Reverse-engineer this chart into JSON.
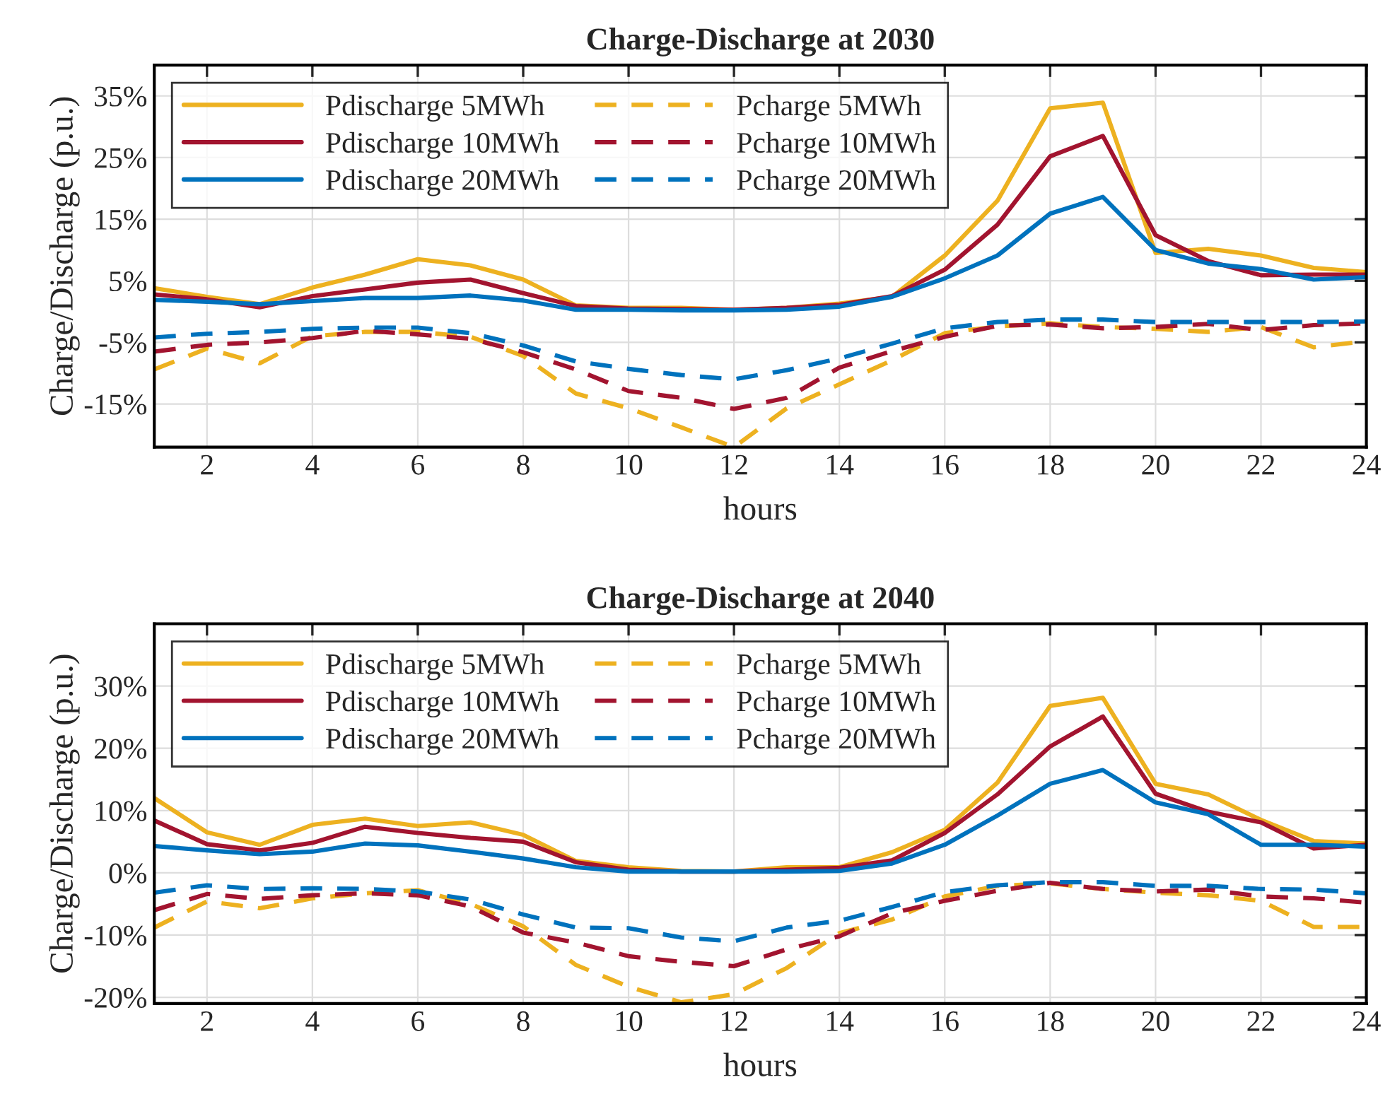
{
  "chart_data": [
    {
      "type": "line",
      "title": "Charge-Discharge at 2030",
      "xlabel": "hours",
      "ylabel": "Charge/Discharge (p.u.)",
      "x": [
        1,
        2,
        3,
        4,
        5,
        6,
        7,
        8,
        9,
        10,
        11,
        12,
        13,
        14,
        15,
        16,
        17,
        18,
        19,
        20,
        21,
        22,
        23,
        24
      ],
      "xlim": [
        1,
        24
      ],
      "xticks": [
        2,
        4,
        6,
        8,
        10,
        12,
        14,
        16,
        18,
        20,
        22,
        24
      ],
      "ylim": [
        -22,
        40
      ],
      "yticks": [
        {
          "value": -15,
          "label": "-15%"
        },
        {
          "value": -5,
          "label": "-5%"
        },
        {
          "value": 5,
          "label": "5%"
        },
        {
          "value": 15,
          "label": "15%"
        },
        {
          "value": 25,
          "label": "25%"
        },
        {
          "value": 35,
          "label": "35%"
        }
      ],
      "grid": true,
      "legend": "top left",
      "series": [
        {
          "name": "Pdischarge 5MWh",
          "color": "#edb120",
          "line_style": "solid",
          "values": [
            3.8,
            2.4,
            1.2,
            3.9,
            6,
            8.5,
            7.5,
            5.2,
            1,
            0.6,
            0.6,
            0.3,
            0.6,
            1.3,
            2.4,
            9.1,
            18,
            33,
            33.9,
            9.5,
            10.2,
            9.1,
            7.1,
            6.4
          ]
        },
        {
          "name": "Pdischarge 10MWh",
          "color": "#a2142f",
          "line_style": "solid",
          "values": [
            2.8,
            2,
            0.7,
            2.5,
            3.6,
            4.7,
            5.2,
            3,
            0.9,
            0.5,
            0.4,
            0.3,
            0.6,
            1.1,
            2.5,
            6.8,
            14.1,
            25.2,
            28.5,
            12.4,
            8.2,
            5.9,
            6,
            6
          ]
        },
        {
          "name": "Pdischarge 20MWh",
          "color": "#0072bd",
          "line_style": "solid",
          "values": [
            1.9,
            1.6,
            1.2,
            1.7,
            2.2,
            2.2,
            2.6,
            1.8,
            0.3,
            0.3,
            0.2,
            0.2,
            0.3,
            0.8,
            2.4,
            5.4,
            9.1,
            15.9,
            18.6,
            10,
            7.8,
            6.9,
            5.2,
            5.6
          ]
        },
        {
          "name": "Pcharge 5MWh",
          "color": "#edb120",
          "line_style": "dashed",
          "values": [
            -9.4,
            -6,
            -8.4,
            -4,
            -3.3,
            -3.3,
            -4.1,
            -7.2,
            -13.3,
            -15.7,
            -18.8,
            -22,
            -15.7,
            -11.8,
            -7.9,
            -3.5,
            -2.4,
            -1.9,
            -2.5,
            -2.8,
            -3.3,
            -2.5,
            -5.8,
            -4.8
          ]
        },
        {
          "name": "Pcharge 10MWh",
          "color": "#a2142f",
          "line_style": "dashed",
          "values": [
            -6.5,
            -5.4,
            -5,
            -4.3,
            -3.1,
            -3.7,
            -4.4,
            -6.6,
            -9.4,
            -12.9,
            -14,
            -15.8,
            -14,
            -9.1,
            -6.4,
            -4.1,
            -2.3,
            -2.1,
            -2.7,
            -2.5,
            -2,
            -3,
            -2.2,
            -1.9
          ]
        },
        {
          "name": "Pcharge 20MWh",
          "color": "#0072bd",
          "line_style": "dashed",
          "values": [
            -4.2,
            -3.6,
            -3.3,
            -2.8,
            -2.6,
            -2.6,
            -3.5,
            -5.5,
            -8.1,
            -9.3,
            -10.3,
            -11,
            -9.5,
            -7.6,
            -5.2,
            -2.7,
            -1.7,
            -1.3,
            -1.3,
            -1.7,
            -1.7,
            -1.7,
            -1.7,
            -1.6
          ]
        }
      ]
    },
    {
      "type": "line",
      "title": "Charge-Discharge at 2040",
      "xlabel": "hours",
      "ylabel": "Charge/Discharge (p.u.)",
      "x": [
        1,
        2,
        3,
        4,
        5,
        6,
        7,
        8,
        9,
        10,
        11,
        12,
        13,
        14,
        15,
        16,
        17,
        18,
        19,
        20,
        21,
        22,
        23,
        24
      ],
      "xlim": [
        1,
        24
      ],
      "xticks": [
        2,
        4,
        6,
        8,
        10,
        12,
        14,
        16,
        18,
        20,
        22,
        24
      ],
      "ylim": [
        -21,
        40
      ],
      "yticks": [
        {
          "value": -20,
          "label": "-20%"
        },
        {
          "value": -10,
          "label": "-10%"
        },
        {
          "value": 0,
          "label": "0%"
        },
        {
          "value": 10,
          "label": "10%"
        },
        {
          "value": 20,
          "label": "20%"
        },
        {
          "value": 30,
          "label": "30%"
        }
      ],
      "grid": true,
      "legend": "top left",
      "series": [
        {
          "name": "Pdischarge 5MWh",
          "color": "#edb120",
          "line_style": "solid",
          "values": [
            12,
            6.5,
            4.5,
            7.7,
            8.7,
            7.5,
            8.1,
            6.1,
            1.9,
            0.9,
            0.3,
            0.2,
            0.9,
            0.9,
            3.3,
            6.9,
            14.5,
            26.8,
            28.1,
            14.3,
            12.6,
            8.5,
            5.1,
            4.7
          ]
        },
        {
          "name": "Pdischarge 10MWh",
          "color": "#a2142f",
          "line_style": "solid",
          "values": [
            8.4,
            4.6,
            3.6,
            4.8,
            7.4,
            6.4,
            5.6,
            5,
            1.7,
            0.5,
            0.2,
            0.2,
            0.5,
            0.8,
            2,
            6.4,
            12.6,
            20.3,
            25.1,
            12.7,
            9.8,
            8.1,
            3.9,
            4.5
          ]
        },
        {
          "name": "Pdischarge 20MWh",
          "color": "#0072bd",
          "line_style": "solid",
          "values": [
            4.3,
            3.6,
            3,
            3.4,
            4.7,
            4.4,
            3.4,
            2.3,
            0.9,
            0.2,
            0.2,
            0.2,
            0.2,
            0.3,
            1.5,
            4.5,
            9.2,
            14.3,
            16.5,
            11.3,
            9.4,
            4.5,
            4.5,
            4.2
          ]
        },
        {
          "name": "Pcharge 5MWh",
          "color": "#edb120",
          "line_style": "dashed",
          "values": [
            -8.8,
            -4.6,
            -5.7,
            -4.1,
            -3.3,
            -2.8,
            -5,
            -8.6,
            -14.8,
            -18.3,
            -20.8,
            -19.5,
            -15.3,
            -9.7,
            -7.5,
            -3.8,
            -2.1,
            -1.7,
            -2.6,
            -3.2,
            -3.6,
            -4.5,
            -8.7,
            -8.7
          ]
        },
        {
          "name": "Pcharge 10MWh",
          "color": "#a2142f",
          "line_style": "dashed",
          "values": [
            -6,
            -3.4,
            -4.2,
            -3.6,
            -3.3,
            -3.6,
            -5.4,
            -9.6,
            -11.2,
            -13.4,
            -14.3,
            -15,
            -12.3,
            -10.2,
            -6.5,
            -4.5,
            -2.9,
            -1.6,
            -2.6,
            -3,
            -2.7,
            -3.8,
            -4.1,
            -4.8
          ]
        },
        {
          "name": "Pcharge 20MWh",
          "color": "#0072bd",
          "line_style": "dashed",
          "values": [
            -3.2,
            -2,
            -2.6,
            -2.5,
            -2.6,
            -3,
            -4.3,
            -6.7,
            -8.8,
            -8.9,
            -10.4,
            -11,
            -8.8,
            -7.7,
            -5.5,
            -3.1,
            -2,
            -1.5,
            -1.5,
            -2.1,
            -2.1,
            -2.6,
            -2.7,
            -3.3
          ]
        }
      ]
    }
  ]
}
